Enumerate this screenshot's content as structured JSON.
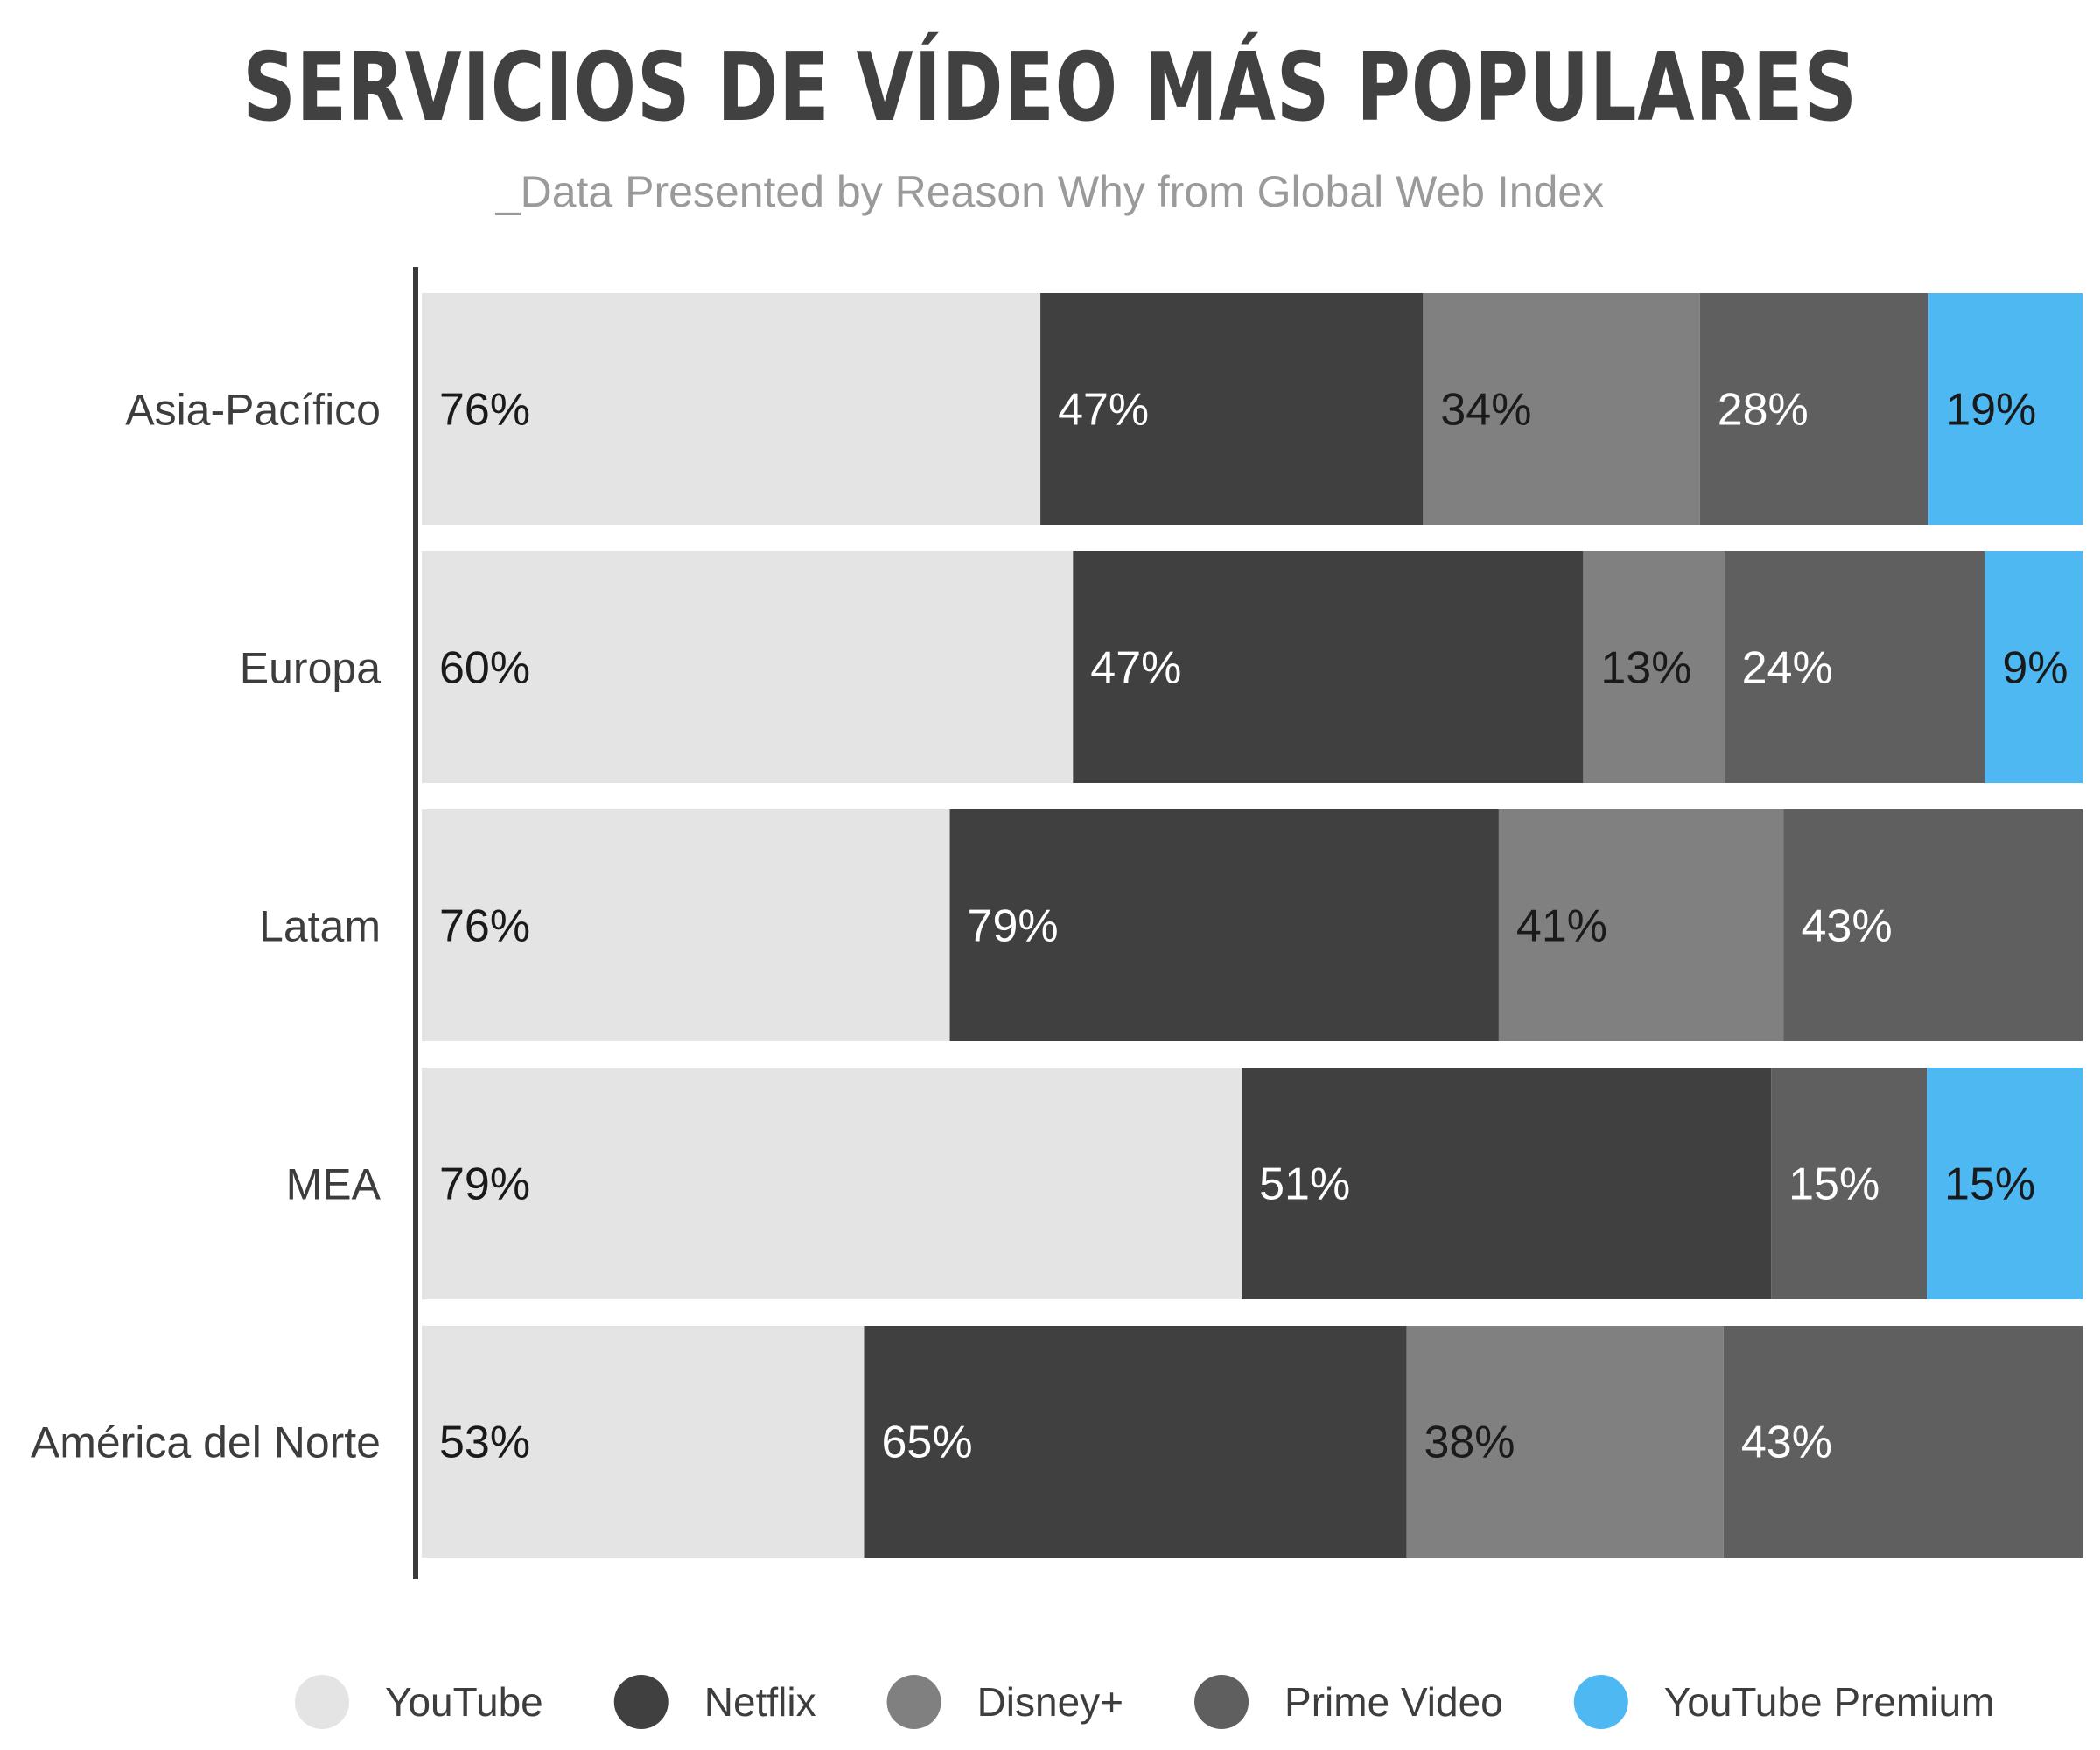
{
  "title": "SERVICIOS DE VÍDEO MÁS POPULARES",
  "subtitle": "_Data Presented by Reason Why from Global Web Index",
  "chart_data": {
    "type": "bar",
    "orientation": "horizontal",
    "stacked": true,
    "categories": [
      "Asia-Pacífico",
      "Europa",
      "Latam",
      "MEA",
      "América del Norte"
    ],
    "series": [
      {
        "name": "YouTube",
        "color": "#e4e4e4",
        "text_color": "#1a1a1a",
        "values": [
          76,
          60,
          76,
          79,
          53
        ]
      },
      {
        "name": "Netflix",
        "color": "#404040",
        "text_color": "#ffffff",
        "values": [
          47,
          47,
          79,
          51,
          65
        ]
      },
      {
        "name": "Disney+",
        "color": "#808080",
        "text_color": "#1a1a1a",
        "values": [
          34,
          13,
          41,
          null,
          38
        ]
      },
      {
        "name": "Prime Video",
        "color": "#5f5f5f",
        "text_color": "#ffffff",
        "values": [
          28,
          24,
          43,
          15,
          43
        ]
      },
      {
        "name": "YouTube Premium",
        "color": "#4db8f2",
        "text_color": "#1a1a1a",
        "values": [
          19,
          9,
          null,
          15,
          null
        ]
      }
    ],
    "value_suffix": "%",
    "legend_position": "bottom",
    "grid": false
  }
}
